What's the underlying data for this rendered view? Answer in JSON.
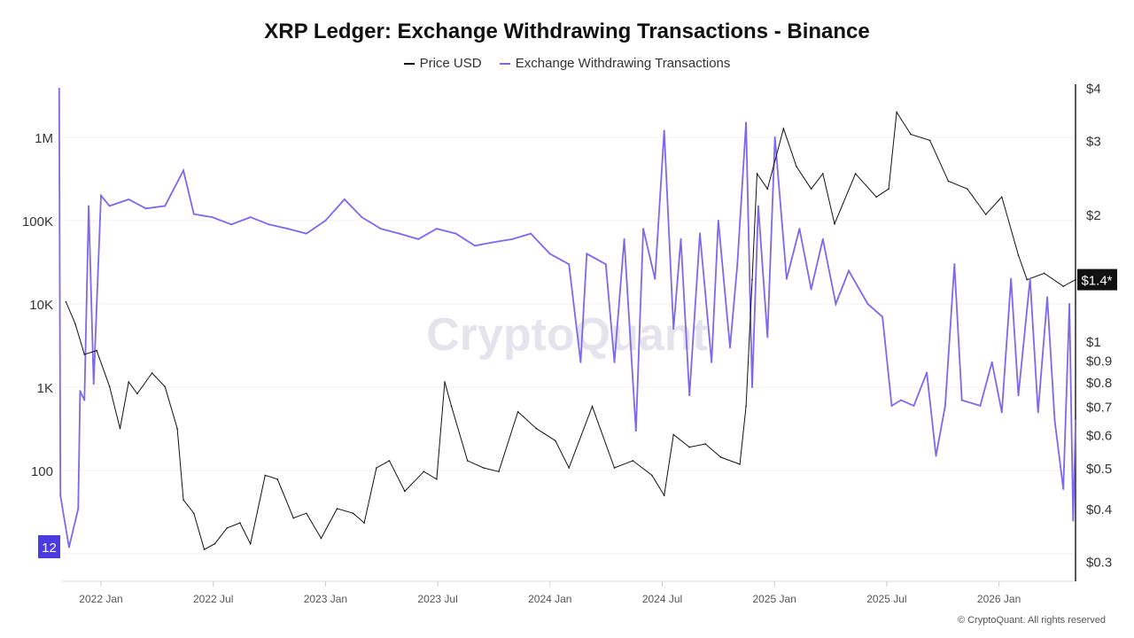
{
  "chart_data": {
    "type": "line",
    "title": "XRP Ledger: Exchange Withdrawing Transactions - Binance",
    "legend": "top",
    "grid": true,
    "watermark": "CryptoQuant",
    "credit": "© CryptoQuant. All rights reserved",
    "x_ticks": [
      "2022 Jan",
      "2022 Jul",
      "2023 Jan",
      "2023 Jul",
      "2024 Jan",
      "2024 Jul",
      "2025 Jan",
      "2025 Jul",
      "2026 Jan"
    ],
    "left_axis": {
      "scale": "log",
      "ticks": [
        "1M",
        "100K",
        "10K",
        "1K",
        "100"
      ],
      "tick_values": [
        1000000,
        100000,
        10000,
        1000,
        100
      ],
      "min_label": "12"
    },
    "right_axis": {
      "scale": "log",
      "ticks": [
        "$4",
        "$3",
        "$2",
        "$1",
        "$0.9",
        "$0.8",
        "$0.7",
        "$0.6",
        "$0.5",
        "$0.4",
        "$0.3"
      ],
      "tick_values": [
        4,
        3,
        2,
        1,
        0.9,
        0.8,
        0.7,
        0.6,
        0.5,
        0.4,
        0.3
      ],
      "current_label": "$1.4*",
      "current_value": 1.4
    },
    "series": [
      {
        "name": "Price USD",
        "axis": "right",
        "color": "#111111",
        "points": [
          [
            "2021-11-05",
            1.24
          ],
          [
            "2021-11-20",
            1.1
          ],
          [
            "2021-12-05",
            0.93
          ],
          [
            "2021-12-25",
            0.95
          ],
          [
            "2022-01-15",
            0.78
          ],
          [
            "2022-02-01",
            0.62
          ],
          [
            "2022-02-15",
            0.8
          ],
          [
            "2022-03-01",
            0.75
          ],
          [
            "2022-03-25",
            0.84
          ],
          [
            "2022-04-15",
            0.78
          ],
          [
            "2022-05-05",
            0.62
          ],
          [
            "2022-05-15",
            0.42
          ],
          [
            "2022-06-01",
            0.39
          ],
          [
            "2022-06-18",
            0.32
          ],
          [
            "2022-07-05",
            0.33
          ],
          [
            "2022-07-25",
            0.36
          ],
          [
            "2022-08-15",
            0.37
          ],
          [
            "2022-09-01",
            0.33
          ],
          [
            "2022-09-25",
            0.48
          ],
          [
            "2022-10-15",
            0.47
          ],
          [
            "2022-11-10",
            0.38
          ],
          [
            "2022-12-01",
            0.39
          ],
          [
            "2022-12-25",
            0.34
          ],
          [
            "2023-01-20",
            0.4
          ],
          [
            "2023-02-15",
            0.39
          ],
          [
            "2023-03-05",
            0.37
          ],
          [
            "2023-03-25",
            0.5
          ],
          [
            "2023-04-15",
            0.52
          ],
          [
            "2023-05-10",
            0.44
          ],
          [
            "2023-06-10",
            0.49
          ],
          [
            "2023-07-01",
            0.47
          ],
          [
            "2023-07-14",
            0.8
          ],
          [
            "2023-07-25",
            0.7
          ],
          [
            "2023-08-20",
            0.52
          ],
          [
            "2023-09-15",
            0.5
          ],
          [
            "2023-10-10",
            0.49
          ],
          [
            "2023-11-10",
            0.68
          ],
          [
            "2023-12-10",
            0.62
          ],
          [
            "2024-01-10",
            0.58
          ],
          [
            "2024-02-01",
            0.5
          ],
          [
            "2024-03-10",
            0.7
          ],
          [
            "2024-04-15",
            0.5
          ],
          [
            "2024-05-15",
            0.52
          ],
          [
            "2024-06-15",
            0.48
          ],
          [
            "2024-07-05",
            0.43
          ],
          [
            "2024-07-20",
            0.6
          ],
          [
            "2024-08-15",
            0.56
          ],
          [
            "2024-09-10",
            0.57
          ],
          [
            "2024-10-05",
            0.53
          ],
          [
            "2024-11-05",
            0.51
          ],
          [
            "2024-11-15",
            0.7
          ],
          [
            "2024-11-25",
            1.4
          ],
          [
            "2024-12-03",
            2.5
          ],
          [
            "2024-12-20",
            2.3
          ],
          [
            "2025-01-15",
            3.2
          ],
          [
            "2025-02-05",
            2.6
          ],
          [
            "2025-03-01",
            2.3
          ],
          [
            "2025-03-20",
            2.5
          ],
          [
            "2025-04-08",
            1.9
          ],
          [
            "2025-05-12",
            2.5
          ],
          [
            "2025-06-15",
            2.2
          ],
          [
            "2025-07-05",
            2.3
          ],
          [
            "2025-07-18",
            3.5
          ],
          [
            "2025-08-10",
            3.1
          ],
          [
            "2025-09-10",
            3.0
          ],
          [
            "2025-10-10",
            2.4
          ],
          [
            "2025-11-10",
            2.3
          ],
          [
            "2025-12-10",
            2.0
          ],
          [
            "2026-01-05",
            2.2
          ],
          [
            "2026-02-01",
            1.6
          ],
          [
            "2026-02-15",
            1.4
          ],
          [
            "2026-03-15",
            1.45
          ],
          [
            "2026-04-15",
            1.35
          ],
          [
            "2026-05-05",
            1.4
          ]
        ]
      },
      {
        "name": "Exchange Withdrawing Transactions",
        "axis": "left",
        "color": "#7b68ee",
        "points": [
          [
            "2021-10-25",
            4000000
          ],
          [
            "2021-10-27",
            50
          ],
          [
            "2021-11-10",
            12
          ],
          [
            "2021-11-25",
            35
          ],
          [
            "2021-11-28",
            900
          ],
          [
            "2021-12-05",
            700
          ],
          [
            "2021-12-12",
            150000
          ],
          [
            "2021-12-20",
            1100
          ],
          [
            "2022-01-01",
            200000
          ],
          [
            "2022-01-15",
            150000
          ],
          [
            "2022-02-15",
            180000
          ],
          [
            "2022-03-15",
            140000
          ],
          [
            "2022-04-15",
            150000
          ],
          [
            "2022-05-15",
            400000
          ],
          [
            "2022-06-01",
            120000
          ],
          [
            "2022-07-01",
            110000
          ],
          [
            "2022-08-01",
            90000
          ],
          [
            "2022-09-01",
            110000
          ],
          [
            "2022-10-01",
            90000
          ],
          [
            "2022-11-01",
            80000
          ],
          [
            "2022-12-01",
            70000
          ],
          [
            "2023-01-01",
            100000
          ],
          [
            "2023-02-01",
            180000
          ],
          [
            "2023-03-01",
            110000
          ],
          [
            "2023-04-01",
            80000
          ],
          [
            "2023-05-01",
            70000
          ],
          [
            "2023-06-01",
            60000
          ],
          [
            "2023-07-01",
            80000
          ],
          [
            "2023-08-01",
            70000
          ],
          [
            "2023-09-01",
            50000
          ],
          [
            "2023-10-01",
            55000
          ],
          [
            "2023-11-01",
            60000
          ],
          [
            "2023-12-01",
            70000
          ],
          [
            "2024-01-01",
            40000
          ],
          [
            "2024-02-01",
            30000
          ],
          [
            "2024-02-20",
            2000
          ],
          [
            "2024-03-01",
            40000
          ],
          [
            "2024-04-01",
            30000
          ],
          [
            "2024-04-15",
            2000
          ],
          [
            "2024-05-01",
            60000
          ],
          [
            "2024-05-20",
            300
          ],
          [
            "2024-06-01",
            80000
          ],
          [
            "2024-06-20",
            20000
          ],
          [
            "2024-07-05",
            1200000
          ],
          [
            "2024-07-20",
            5000
          ],
          [
            "2024-08-01",
            60000
          ],
          [
            "2024-08-15",
            800
          ],
          [
            "2024-09-01",
            70000
          ],
          [
            "2024-09-20",
            2000
          ],
          [
            "2024-10-01",
            100000
          ],
          [
            "2024-10-20",
            3000
          ],
          [
            "2024-11-01",
            30000
          ],
          [
            "2024-11-15",
            1500000
          ],
          [
            "2024-11-25",
            1000
          ],
          [
            "2024-12-05",
            150000
          ],
          [
            "2024-12-20",
            4000
          ],
          [
            "2025-01-01",
            1000000
          ],
          [
            "2025-01-20",
            20000
          ],
          [
            "2025-02-10",
            80000
          ],
          [
            "2025-03-01",
            15000
          ],
          [
            "2025-03-20",
            60000
          ],
          [
            "2025-04-10",
            10000
          ],
          [
            "2025-05-01",
            25000
          ],
          [
            "2025-06-01",
            10000
          ],
          [
            "2025-06-25",
            7000
          ],
          [
            "2025-07-10",
            600
          ],
          [
            "2025-07-25",
            700
          ],
          [
            "2025-08-15",
            600
          ],
          [
            "2025-09-05",
            1500
          ],
          [
            "2025-09-20",
            150
          ],
          [
            "2025-10-05",
            600
          ],
          [
            "2025-10-20",
            30000
          ],
          [
            "2025-11-01",
            700
          ],
          [
            "2025-12-01",
            600
          ],
          [
            "2025-12-20",
            2000
          ],
          [
            "2026-01-05",
            500
          ],
          [
            "2026-01-20",
            20000
          ],
          [
            "2026-02-01",
            800
          ],
          [
            "2026-02-20",
            20000
          ],
          [
            "2026-03-05",
            500
          ],
          [
            "2026-03-20",
            12000
          ],
          [
            "2026-04-01",
            400
          ],
          [
            "2026-04-15",
            60
          ],
          [
            "2026-04-25",
            10000
          ],
          [
            "2026-05-01",
            25
          ],
          [
            "2026-05-05",
            400
          ]
        ]
      }
    ]
  }
}
